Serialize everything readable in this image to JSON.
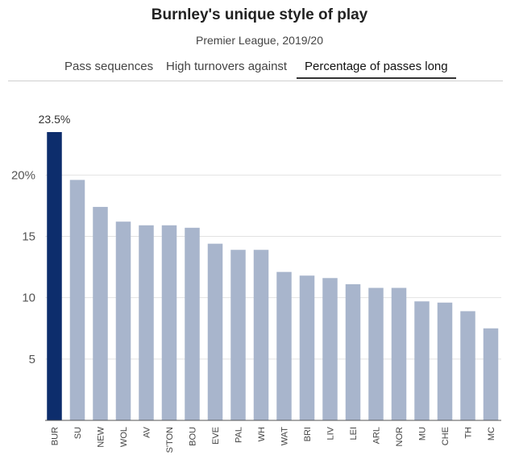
{
  "header": {
    "title": "Burnley's unique style of play",
    "subtitle": "Premier League, 2019/20"
  },
  "tabs": [
    {
      "label": "Pass sequences",
      "active": false
    },
    {
      "label": "High turnovers against",
      "active": false
    },
    {
      "label": "Percentage of passes long",
      "active": true
    }
  ],
  "colors": {
    "highlight": "#0d2d6c",
    "bar": "#a8b5cc",
    "grid": "#e2e2e2",
    "axis": "#555555"
  },
  "chart_data": {
    "type": "bar",
    "categories": [
      "BUR",
      "SU",
      "NEW",
      "WOL",
      "AV",
      "S'TON",
      "BOU",
      "EVE",
      "PAL",
      "WH",
      "WAT",
      "BRI",
      "LIV",
      "LEI",
      "ARL",
      "NOR",
      "MU",
      "CHE",
      "TH",
      "MC"
    ],
    "values": [
      23.5,
      19.6,
      17.4,
      16.2,
      15.9,
      15.9,
      15.7,
      14.4,
      13.9,
      13.9,
      12.1,
      11.8,
      11.6,
      11.1,
      10.8,
      10.8,
      9.7,
      9.6,
      8.9,
      7.5
    ],
    "highlight_index": 0,
    "data_labels": [
      {
        "index": 0,
        "text": "23.5%"
      }
    ],
    "yticks": [
      {
        "value": 5,
        "label": "5"
      },
      {
        "value": 10,
        "label": "10"
      },
      {
        "value": 15,
        "label": "15"
      },
      {
        "value": 20,
        "label": "20%"
      }
    ],
    "ylim": [
      0,
      23.5
    ],
    "grid": true,
    "title": "",
    "xlabel": "",
    "ylabel": ""
  }
}
